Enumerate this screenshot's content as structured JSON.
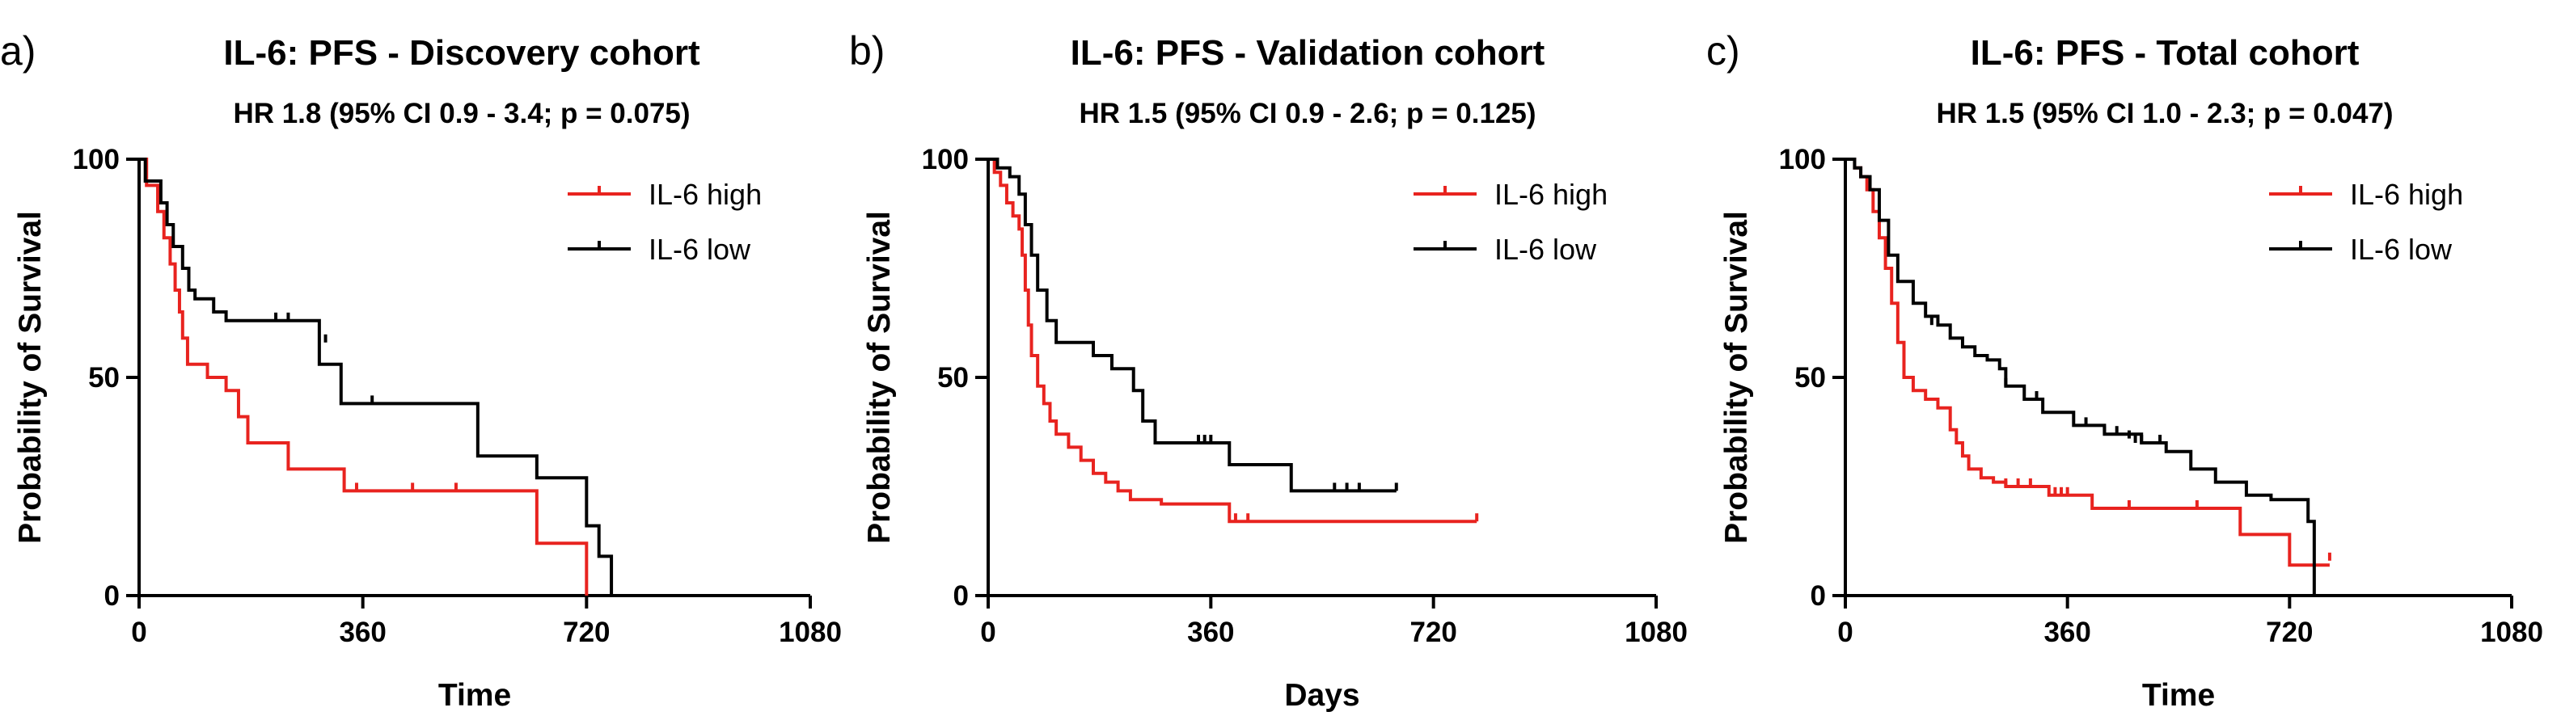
{
  "chart_data": [
    {
      "type": "line",
      "panel_label": "a)",
      "title": "IL-6: PFS - Discovery cohort",
      "subtitle": "HR 1.8 (95% CI 0.9 - 3.4; p = 0.075)",
      "xlabel": "Time",
      "ylabel": "Probability of Survival",
      "xlim": [
        0,
        1080
      ],
      "ylim": [
        0,
        100
      ],
      "xticks": [
        "0",
        "360",
        "720",
        "1080"
      ],
      "yticks": [
        "0",
        "50",
        "100"
      ],
      "legend_position": "top-right",
      "series": [
        {
          "name": "IL-6 high",
          "color": "#e8231f",
          "x": [
            0,
            12,
            30,
            40,
            50,
            58,
            65,
            70,
            78,
            90,
            110,
            140,
            160,
            175,
            185,
            200,
            240,
            280,
            330,
            640,
            720
          ],
          "y": [
            100,
            94,
            88,
            82,
            76,
            70,
            65,
            59,
            53,
            53,
            50,
            47,
            41,
            35,
            35,
            35,
            29,
            29,
            24,
            12,
            0
          ],
          "censor_x": [
            350,
            440,
            510
          ],
          "censor_y": [
            24,
            24,
            24
          ]
        },
        {
          "name": "IL-6 low",
          "color": "#000000",
          "x": [
            0,
            10,
            25,
            35,
            45,
            55,
            70,
            80,
            90,
            105,
            120,
            140,
            160,
            195,
            255,
            290,
            325,
            545,
            570,
            640,
            720,
            740,
            760
          ],
          "y": [
            100,
            95,
            95,
            90,
            85,
            80,
            75,
            70,
            68,
            68,
            65,
            63,
            63,
            63,
            63,
            53,
            44,
            32,
            32,
            27,
            16,
            9,
            0
          ],
          "censor_x": [
            220,
            240,
            300,
            375
          ],
          "censor_y": [
            63,
            63,
            58,
            44
          ]
        }
      ]
    },
    {
      "type": "line",
      "panel_label": "b)",
      "title": "IL-6: PFS - Validation cohort",
      "subtitle": "HR 1.5 (95% CI 0.9 - 2.6; p = 0.125)",
      "xlabel": "Days",
      "ylabel": "Probability of Survival",
      "xlim": [
        0,
        1080
      ],
      "ylim": [
        0,
        100
      ],
      "xticks": [
        "0",
        "360",
        "720",
        "1080"
      ],
      "yticks": [
        "0",
        "50",
        "100"
      ],
      "legend_position": "top-right",
      "series": [
        {
          "name": "IL-6 high",
          "color": "#e8231f",
          "x": [
            0,
            10,
            20,
            30,
            40,
            50,
            55,
            60,
            65,
            70,
            80,
            90,
            100,
            110,
            130,
            150,
            170,
            190,
            210,
            230,
            280,
            300,
            390,
            790
          ],
          "y": [
            100,
            97,
            94,
            90,
            87,
            84,
            78,
            70,
            62,
            55,
            48,
            44,
            40,
            37,
            34,
            31,
            28,
            26,
            24,
            22,
            21,
            21,
            17,
            17
          ],
          "censor_x": [
            400,
            420,
            790
          ],
          "censor_y": [
            17,
            17,
            17
          ]
        },
        {
          "name": "IL-6 low",
          "color": "#000000",
          "x": [
            0,
            15,
            35,
            50,
            60,
            70,
            80,
            95,
            110,
            150,
            170,
            200,
            235,
            250,
            270,
            320,
            390,
            490,
            660
          ],
          "y": [
            100,
            98,
            96,
            92,
            85,
            78,
            70,
            63,
            58,
            58,
            55,
            52,
            47,
            40,
            35,
            35,
            30,
            24,
            24
          ],
          "censor_x": [
            340,
            350,
            360,
            560,
            580,
            600,
            660
          ],
          "censor_y": [
            35,
            35,
            35,
            24,
            24,
            24,
            24
          ]
        }
      ]
    },
    {
      "type": "line",
      "panel_label": "c)",
      "title": "IL-6: PFS - Total cohort",
      "subtitle": "HR 1.5 (95% CI 1.0 - 2.3; p = 0.047)",
      "xlabel": "Time",
      "ylabel": "Probability of Survival",
      "xlim": [
        0,
        1080
      ],
      "ylim": [
        0,
        100
      ],
      "xticks": [
        "0",
        "360",
        "720",
        "1080"
      ],
      "yticks": [
        "0",
        "50",
        "100"
      ],
      "legend_position": "top-right",
      "series": [
        {
          "name": "IL-6 high",
          "color": "#e8231f",
          "x": [
            0,
            15,
            25,
            35,
            45,
            55,
            65,
            75,
            85,
            95,
            110,
            130,
            150,
            170,
            180,
            190,
            200,
            220,
            240,
            260,
            290,
            330,
            400,
            640,
            720,
            785
          ],
          "y": [
            100,
            98,
            96,
            93,
            88,
            82,
            75,
            67,
            58,
            50,
            47,
            45,
            43,
            38,
            35,
            32,
            29,
            27,
            26,
            25,
            25,
            23,
            20,
            14,
            7,
            7
          ],
          "censor_x": [
            260,
            280,
            300,
            340,
            350,
            360,
            460,
            570,
            785
          ],
          "censor_y": [
            25,
            25,
            25,
            23,
            23,
            23,
            20,
            20,
            8
          ]
        },
        {
          "name": "IL-6 low",
          "color": "#000000",
          "x": [
            0,
            15,
            25,
            40,
            55,
            70,
            85,
            110,
            130,
            150,
            170,
            190,
            210,
            230,
            250,
            260,
            290,
            320,
            370,
            420,
            480,
            520,
            560,
            600,
            650,
            690,
            750,
            760
          ],
          "y": [
            100,
            98,
            96,
            93,
            86,
            78,
            72,
            67,
            64,
            62,
            59,
            57,
            55,
            54,
            52,
            48,
            45,
            42,
            39,
            37,
            35,
            33,
            29,
            26,
            23,
            22,
            17,
            0
          ],
          "censor_x": [
            140,
            260,
            310,
            390,
            420,
            440,
            460,
            470,
            480,
            510
          ],
          "censor_y": [
            62,
            48,
            45,
            39,
            37,
            37,
            36,
            35,
            35,
            35
          ]
        }
      ]
    }
  ]
}
